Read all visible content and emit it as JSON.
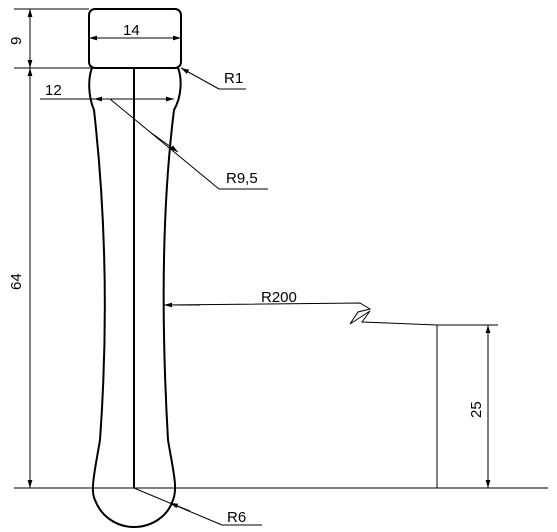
{
  "dimensions": {
    "width_top": "14",
    "height_top": "9",
    "width_neck": "12",
    "height_total": "64",
    "height_r200_center": "25"
  },
  "radii": {
    "corner": "R1",
    "shoulder": "R9,5",
    "side_arc": "R200",
    "bottom": "R6"
  }
}
